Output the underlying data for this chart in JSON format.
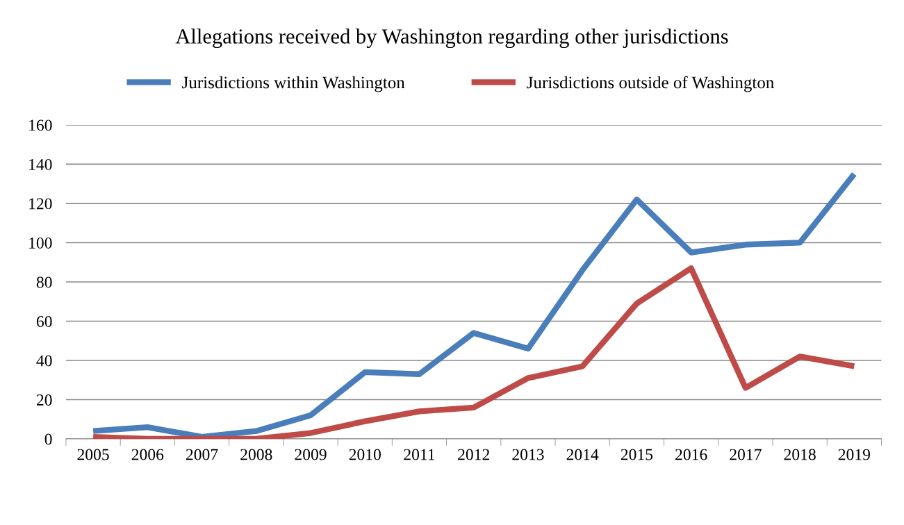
{
  "chart_data": {
    "type": "line",
    "title": "Allegations received by Washington regarding other jurisdictions",
    "categories": [
      "2005",
      "2006",
      "2007",
      "2008",
      "2009",
      "2010",
      "2011",
      "2012",
      "2013",
      "2014",
      "2015",
      "2016",
      "2017",
      "2018",
      "2019"
    ],
    "series": [
      {
        "name": "Jurisdictions within Washington",
        "color": "#4a7ebb",
        "values": [
          4,
          6,
          1,
          4,
          12,
          34,
          33,
          54,
          46,
          86,
          122,
          95,
          99,
          100,
          135
        ]
      },
      {
        "name": "Jurisdictions outside of Washington",
        "color": "#be4b48",
        "values": [
          1,
          0,
          0,
          0,
          3,
          9,
          14,
          16,
          31,
          37,
          69,
          87,
          26,
          42,
          37
        ]
      }
    ],
    "ylim": [
      0,
      160
    ],
    "yticks": [
      0,
      20,
      40,
      60,
      80,
      100,
      120,
      140,
      160
    ],
    "grid": "y",
    "legend": "top",
    "marker": "none",
    "line_style": "solid"
  }
}
